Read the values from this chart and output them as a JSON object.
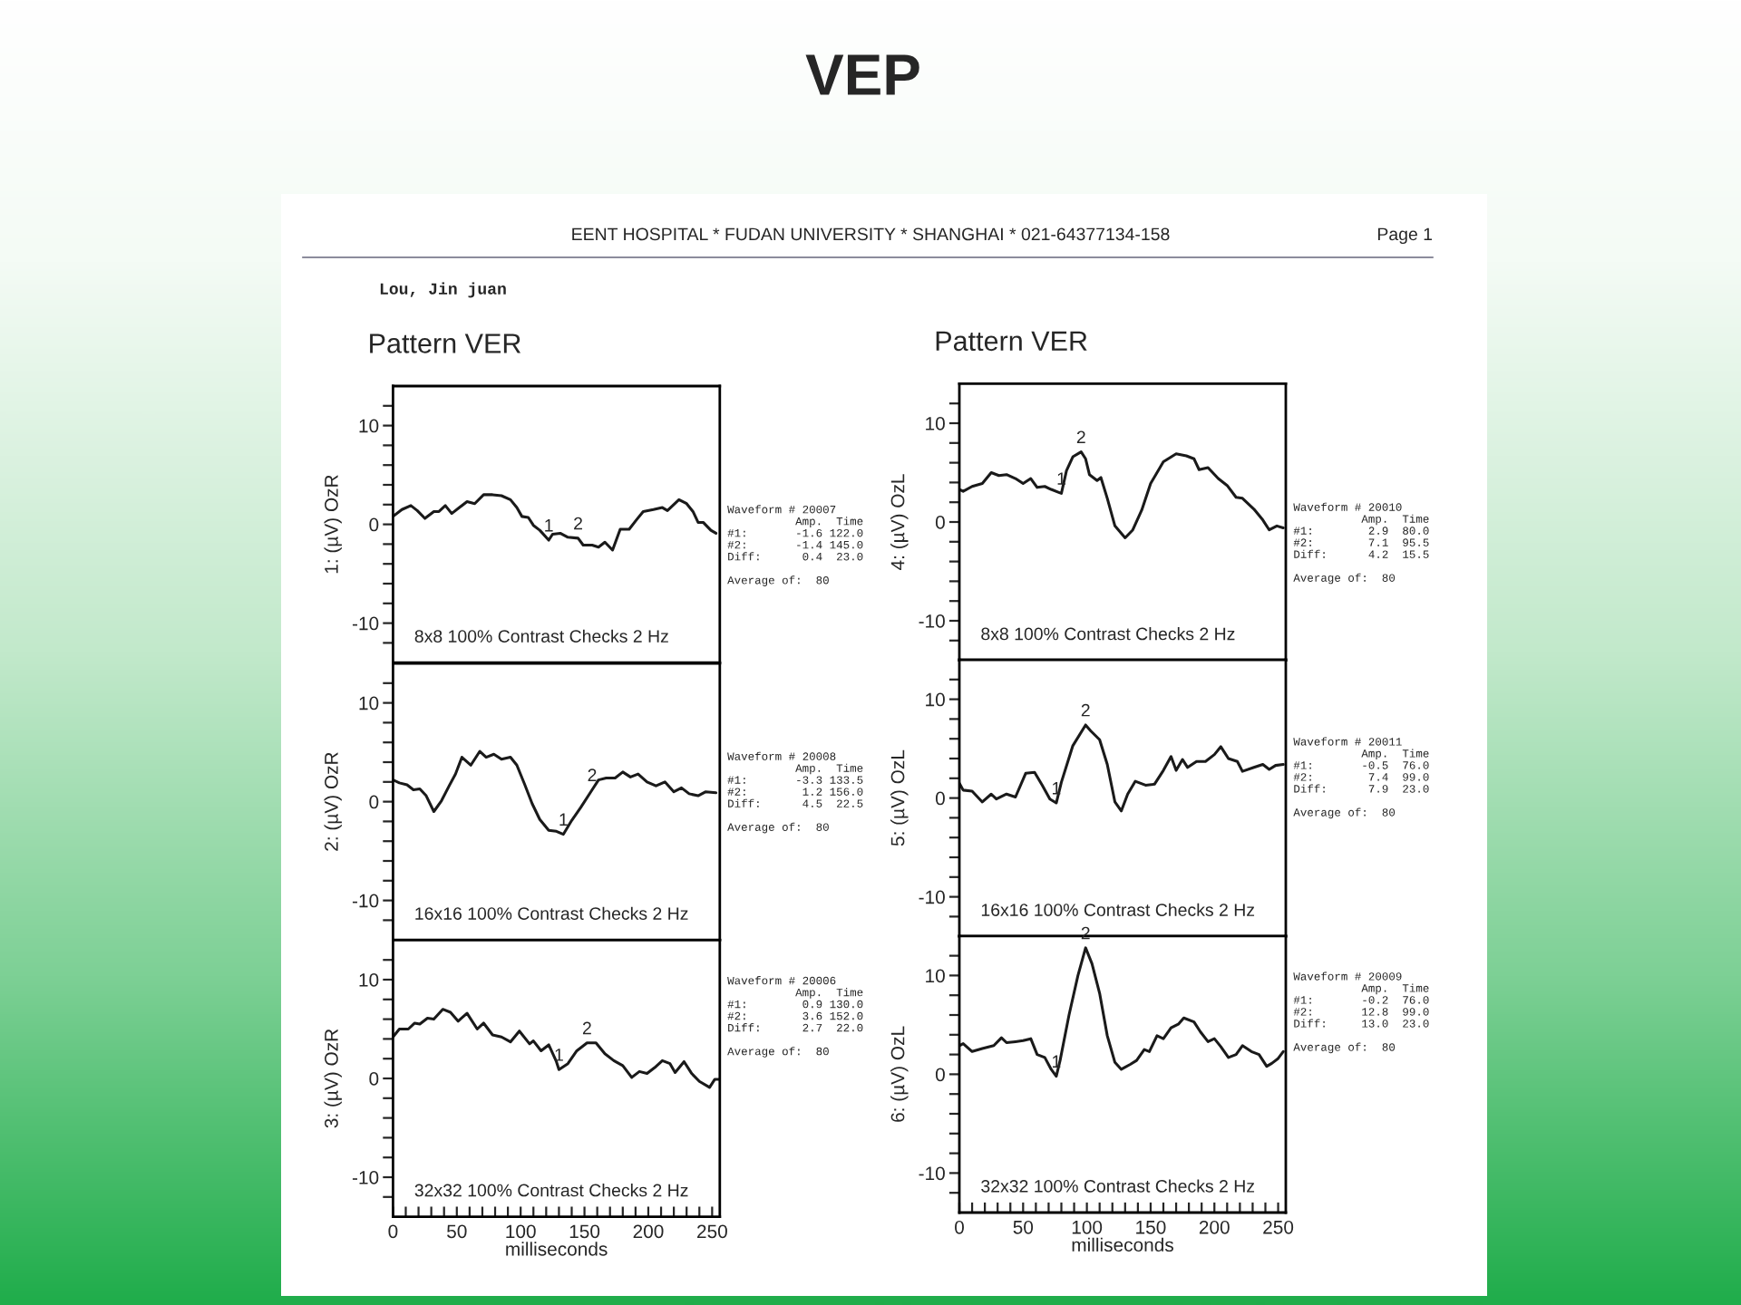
{
  "chart_data": [
    {
      "type": "other",
      "title": "VEP",
      "annotations": [
        "EENT HOSPITAL * FUDAN UNIVERSITY * SHANGHAI * 021-64377134-158",
        "Page 1",
        "Lou, Jin juan"
      ]
    },
    {
      "type": "line",
      "title": "Pattern VER",
      "ylabel": "1: (µV) OzR",
      "color": "#1a1a1a",
      "xlim": [
        0,
        256
      ],
      "ylim": [
        -14,
        14
      ],
      "yticks": [
        {
          "value": -12,
          "label": null
        },
        -10,
        {
          "value": -8,
          "label": null
        },
        {
          "value": -6,
          "label": null
        },
        {
          "value": -4,
          "label": null
        },
        {
          "value": -2,
          "label": null
        },
        0,
        {
          "value": 2,
          "label": null
        },
        {
          "value": 4,
          "label": null
        },
        {
          "value": 6,
          "label": null
        },
        {
          "value": 8,
          "label": null
        },
        10,
        {
          "value": 12,
          "label": null
        }
      ],
      "tick_labels": "y",
      "x": [
        0,
        7,
        14,
        19,
        25,
        32,
        36,
        41,
        46,
        52,
        58,
        64,
        71,
        78,
        85,
        92,
        97,
        101,
        106,
        110,
        115,
        122,
        125,
        131,
        137,
        145,
        149,
        156,
        161,
        166,
        172,
        178,
        185,
        191,
        196,
        204,
        211,
        215,
        224,
        230,
        235,
        239,
        243,
        249,
        253
      ],
      "values": [
        0.8,
        1.5,
        1.9,
        1.4,
        0.6,
        1.3,
        1.3,
        1.9,
        1.1,
        1.7,
        2.3,
        2.1,
        3.0,
        3.0,
        2.9,
        2.5,
        1.7,
        0.8,
        0.7,
        -0.1,
        -0.6,
        -1.6,
        -1.0,
        -0.9,
        -1.3,
        -1.4,
        -2.1,
        -2.1,
        -2.3,
        -1.8,
        -2.6,
        -0.5,
        -0.5,
        0.5,
        1.3,
        1.5,
        1.7,
        1.4,
        2.5,
        2.1,
        1.3,
        0.2,
        0.2,
        -0.6,
        -0.9
      ],
      "annotations": [
        "8x8 100% Contrast Checks 2 Hz",
        "Waveform # 20007\n          Amp.  Time\n#1:       -1.6 122.0\n#2:       -1.4 145.0\nDiff:      0.4  23.0\n\nAverage of:  80",
        {
          "text": "1",
          "x": 122.0,
          "y": -1.6
        },
        {
          "text": "2",
          "x": 145.0,
          "y": -1.4
        }
      ]
    },
    {
      "type": "line",
      "ylabel": "2: (µV) OzR",
      "color": "#1a1a1a",
      "xlim": [
        0,
        256
      ],
      "ylim": [
        -14,
        14
      ],
      "yticks": [
        {
          "value": -12,
          "label": null
        },
        -10,
        {
          "value": -8,
          "label": null
        },
        {
          "value": -6,
          "label": null
        },
        {
          "value": -4,
          "label": null
        },
        {
          "value": -2,
          "label": null
        },
        0,
        {
          "value": 2,
          "label": null
        },
        {
          "value": 4,
          "label": null
        },
        {
          "value": 6,
          "label": null
        },
        {
          "value": 8,
          "label": null
        },
        10,
        {
          "value": 12,
          "label": null
        }
      ],
      "tick_labels": "y",
      "x": [
        0,
        5,
        11,
        16,
        21,
        26,
        32,
        38,
        44,
        49,
        54,
        61,
        68,
        73,
        79,
        85,
        92,
        97,
        103,
        109,
        115,
        122,
        128,
        133.5,
        140,
        147,
        156,
        161,
        167,
        174,
        180,
        186,
        192,
        199,
        206,
        213,
        220,
        226,
        232,
        239,
        245,
        253
      ],
      "values": [
        2.2,
        1.9,
        1.7,
        1.2,
        1.3,
        0.6,
        -1.0,
        0.1,
        1.6,
        2.8,
        4.5,
        3.7,
        5.1,
        4.5,
        4.8,
        4.3,
        4.5,
        3.7,
        1.8,
        -0.2,
        -1.8,
        -2.9,
        -3.0,
        -3.3,
        -1.9,
        -0.6,
        1.2,
        2.2,
        2.4,
        2.4,
        3.0,
        2.5,
        2.8,
        2.0,
        1.6,
        2.0,
        1.0,
        1.4,
        0.8,
        0.6,
        1.0,
        0.9
      ],
      "annotations": [
        "16x16 100% Contrast Checks 2 Hz",
        "Waveform # 20008\n          Amp.  Time\n#1:       -3.3 133.5\n#2:        1.2 156.0\nDiff:      4.5  22.5\n\nAverage of:  80",
        {
          "text": "1",
          "x": 133.5,
          "y": -3.3
        },
        {
          "text": "2",
          "x": 156.0,
          "y": 1.2
        }
      ]
    },
    {
      "type": "line",
      "ylabel": "3: (µV) OzR",
      "xlabel": "milliseconds",
      "color": "#1a1a1a",
      "xlim": [
        0,
        256
      ],
      "ylim": [
        -14,
        14
      ],
      "yticks": [
        {
          "value": -12,
          "label": null
        },
        -10,
        {
          "value": -8,
          "label": null
        },
        {
          "value": -6,
          "label": null
        },
        {
          "value": -4,
          "label": null
        },
        {
          "value": -2,
          "label": null
        },
        0,
        {
          "value": 2,
          "label": null
        },
        {
          "value": 4,
          "label": null
        },
        {
          "value": 6,
          "label": null
        },
        {
          "value": 8,
          "label": null
        },
        10,
        {
          "value": 12,
          "label": null
        }
      ],
      "xticks": [
        0,
        {
          "value": 10,
          "label": null
        },
        {
          "value": 20,
          "label": null
        },
        {
          "value": 30,
          "label": null
        },
        {
          "value": 40,
          "label": null
        },
        50,
        {
          "value": 60,
          "label": null
        },
        {
          "value": 70,
          "label": null
        },
        {
          "value": 80,
          "label": null
        },
        {
          "value": 90,
          "label": null
        },
        100,
        {
          "value": 110,
          "label": null
        },
        {
          "value": 120,
          "label": null
        },
        {
          "value": 130,
          "label": null
        },
        {
          "value": 140,
          "label": null
        },
        150,
        {
          "value": 160,
          "label": null
        },
        {
          "value": 170,
          "label": null
        },
        {
          "value": 180,
          "label": null
        },
        {
          "value": 190,
          "label": null
        },
        200,
        {
          "value": 210,
          "label": null
        },
        {
          "value": 220,
          "label": null
        },
        {
          "value": 230,
          "label": null
        },
        {
          "value": 240,
          "label": null
        },
        250
      ],
      "x": [
        0,
        5,
        12,
        17,
        21,
        27,
        32,
        39,
        45,
        51,
        58,
        66,
        71,
        78,
        85,
        92,
        99,
        107,
        110,
        116,
        122,
        128,
        130,
        137,
        144,
        152,
        159,
        166,
        173,
        180,
        187,
        193,
        199,
        205,
        211,
        217,
        221,
        228,
        234,
        240,
        248,
        252,
        256
      ],
      "values": [
        4.2,
        5.0,
        5.0,
        5.6,
        5.5,
        6.1,
        6.0,
        7.0,
        6.7,
        5.8,
        6.6,
        5.0,
        5.6,
        4.4,
        4.2,
        3.7,
        4.8,
        3.5,
        3.8,
        2.8,
        3.4,
        1.7,
        0.9,
        1.5,
        2.8,
        3.6,
        3.6,
        2.5,
        1.8,
        1.3,
        0.1,
        0.7,
        0.5,
        1.1,
        1.8,
        1.5,
        0.6,
        1.7,
        0.5,
        -0.3,
        -0.9,
        -0.1,
        -0.1
      ],
      "annotations": [
        "32x32 100% Contrast Checks 2 Hz",
        "Waveform # 20006\n          Amp.  Time\n#1:        0.9 130.0\n#2:        3.6 152.0\nDiff:      2.7  22.0\n\nAverage of:  80",
        {
          "text": "1",
          "x": 130.0,
          "y": 0.9
        },
        {
          "text": "2",
          "x": 152.0,
          "y": 3.6
        }
      ]
    },
    {
      "type": "line",
      "title": "Pattern VER",
      "ylabel": "4: (µV) OzL",
      "color": "#1a1a1a",
      "xlim": [
        0,
        256
      ],
      "ylim": [
        -14,
        14
      ],
      "yticks": [
        {
          "value": -12,
          "label": null
        },
        -10,
        {
          "value": -8,
          "label": null
        },
        {
          "value": -6,
          "label": null
        },
        {
          "value": -4,
          "label": null
        },
        {
          "value": -2,
          "label": null
        },
        0,
        {
          "value": 2,
          "label": null
        },
        {
          "value": 4,
          "label": null
        },
        {
          "value": 6,
          "label": null
        },
        {
          "value": 8,
          "label": null
        },
        10,
        {
          "value": 12,
          "label": null
        }
      ],
      "tick_labels": "y",
      "x": [
        0,
        3,
        10,
        18,
        25,
        31,
        37,
        44,
        50,
        56,
        61,
        67,
        72,
        78,
        80,
        84,
        89,
        95.5,
        99,
        102,
        108,
        111,
        116,
        122,
        130,
        136,
        143,
        150,
        160,
        170,
        178,
        184,
        188,
        195,
        203,
        210,
        217,
        222,
        231,
        238,
        243,
        249,
        254
      ],
      "values": [
        3.3,
        3.1,
        3.6,
        3.9,
        5.0,
        4.7,
        4.8,
        4.4,
        3.9,
        4.4,
        3.5,
        3.6,
        3.3,
        3.0,
        2.9,
        5.2,
        6.6,
        7.1,
        6.4,
        4.8,
        4.2,
        4.5,
        2.4,
        -0.4,
        -1.6,
        -0.8,
        1.2,
        3.9,
        6.1,
        6.9,
        6.7,
        6.4,
        5.3,
        5.5,
        4.4,
        3.7,
        2.5,
        2.4,
        1.3,
        0.2,
        -0.8,
        -0.4,
        -0.6
      ],
      "annotations": [
        "8x8 100% Contrast Checks 2 Hz",
        "Waveform # 20010\n          Amp.  Time\n#1:        2.9  80.0\n#2:        7.1  95.5\nDiff:      4.2  15.5\n\nAverage of:  80",
        {
          "text": "1",
          "x": 80.0,
          "y": 2.9
        },
        {
          "text": "2",
          "x": 95.5,
          "y": 7.1
        }
      ]
    },
    {
      "type": "line",
      "ylabel": "5: (µV) OzL",
      "color": "#1a1a1a",
      "xlim": [
        0,
        256
      ],
      "ylim": [
        -14,
        14
      ],
      "yticks": [
        {
          "value": -12,
          "label": null
        },
        -10,
        {
          "value": -8,
          "label": null
        },
        {
          "value": -6,
          "label": null
        },
        {
          "value": -4,
          "label": null
        },
        {
          "value": -2,
          "label": null
        },
        0,
        {
          "value": 2,
          "label": null
        },
        {
          "value": 4,
          "label": null
        },
        {
          "value": 6,
          "label": null
        },
        {
          "value": 8,
          "label": null
        },
        10,
        {
          "value": 12,
          "label": null
        }
      ],
      "tick_labels": "y",
      "x": [
        0,
        3,
        10,
        18,
        25,
        29,
        37,
        44,
        52,
        59,
        65,
        71,
        76,
        80,
        89,
        99,
        103,
        110,
        116,
        122,
        127,
        132,
        138,
        146,
        153,
        160,
        166,
        170,
        175,
        179,
        186,
        193,
        200,
        205,
        211,
        218,
        222,
        231,
        238,
        243,
        248,
        254
      ],
      "values": [
        1.5,
        0.8,
        0.7,
        -0.4,
        0.4,
        -0.1,
        0.4,
        0.1,
        2.5,
        2.6,
        1.3,
        -0.1,
        -0.5,
        1.6,
        5.3,
        7.4,
        6.8,
        5.9,
        3.4,
        -0.4,
        -1.3,
        0.4,
        1.7,
        1.3,
        1.4,
        2.8,
        4.2,
        2.8,
        3.9,
        3.1,
        3.7,
        3.7,
        4.4,
        5.2,
        4.0,
        3.7,
        2.7,
        3.1,
        3.4,
        2.9,
        3.3,
        3.4
      ],
      "annotations": [
        "16x16 100% Contrast Checks 2 Hz",
        "Waveform # 20011\n          Amp.  Time\n#1:       -0.5  76.0\n#2:        7.4  99.0\nDiff:      7.9  23.0\n\nAverage of:  80",
        {
          "text": "1",
          "x": 76.0,
          "y": -0.5
        },
        {
          "text": "2",
          "x": 99.0,
          "y": 7.4
        }
      ]
    },
    {
      "type": "line",
      "ylabel": "6: (µV) OzL",
      "xlabel": "milliseconds",
      "color": "#1a1a1a",
      "xlim": [
        0,
        256
      ],
      "ylim": [
        -14,
        14
      ],
      "yticks": [
        {
          "value": -12,
          "label": null
        },
        -10,
        {
          "value": -8,
          "label": null
        },
        {
          "value": -6,
          "label": null
        },
        {
          "value": -4,
          "label": null
        },
        {
          "value": -2,
          "label": null
        },
        0,
        {
          "value": 2,
          "label": null
        },
        {
          "value": 4,
          "label": null
        },
        {
          "value": 6,
          "label": null
        },
        {
          "value": 8,
          "label": null
        },
        10,
        {
          "value": 12,
          "label": null
        }
      ],
      "xticks": [
        0,
        {
          "value": 10,
          "label": null
        },
        {
          "value": 20,
          "label": null
        },
        {
          "value": 30,
          "label": null
        },
        {
          "value": 40,
          "label": null
        },
        50,
        {
          "value": 60,
          "label": null
        },
        {
          "value": 70,
          "label": null
        },
        {
          "value": 80,
          "label": null
        },
        {
          "value": 90,
          "label": null
        },
        100,
        {
          "value": 110,
          "label": null
        },
        {
          "value": 120,
          "label": null
        },
        {
          "value": 130,
          "label": null
        },
        {
          "value": 140,
          "label": null
        },
        150,
        {
          "value": 160,
          "label": null
        },
        {
          "value": 170,
          "label": null
        },
        {
          "value": 180,
          "label": null
        },
        {
          "value": 190,
          "label": null
        },
        200,
        {
          "value": 210,
          "label": null
        },
        {
          "value": 220,
          "label": null
        },
        {
          "value": 230,
          "label": null
        },
        {
          "value": 240,
          "label": null
        },
        250
      ],
      "x": [
        0,
        3,
        10,
        18,
        27,
        33,
        37,
        44,
        50,
        56,
        61,
        67,
        72,
        76,
        79,
        86,
        93,
        99,
        104,
        110,
        116,
        122,
        127,
        134,
        139,
        145,
        149,
        155,
        160,
        166,
        172,
        176,
        184,
        189,
        195,
        200,
        205,
        211,
        217,
        222,
        229,
        235,
        241,
        245,
        250,
        254
      ],
      "values": [
        2.9,
        3.1,
        2.3,
        2.6,
        2.9,
        3.7,
        3.2,
        3.3,
        3.4,
        3.6,
        2.0,
        1.7,
        0.5,
        -0.2,
        1.4,
        6.0,
        10.0,
        12.8,
        11.2,
        8.2,
        3.9,
        1.2,
        0.5,
        1.0,
        1.4,
        2.5,
        2.3,
        3.9,
        3.6,
        4.7,
        5.1,
        5.7,
        5.3,
        4.3,
        3.3,
        3.6,
        2.8,
        1.7,
        2.0,
        2.9,
        2.3,
        2.0,
        0.8,
        1.1,
        1.6,
        2.3
      ],
      "annotations": [
        "32x32 100% Contrast Checks 2 Hz",
        "Waveform # 20009\n          Amp.  Time\n#1:       -0.2  76.0\n#2:       12.8  99.0\nDiff:     13.0  23.0\n\nAverage of:  80",
        {
          "text": "1",
          "x": 76.0,
          "y": -0.2
        },
        {
          "text": "2",
          "x": 99.0,
          "y": 12.8
        }
      ]
    }
  ]
}
